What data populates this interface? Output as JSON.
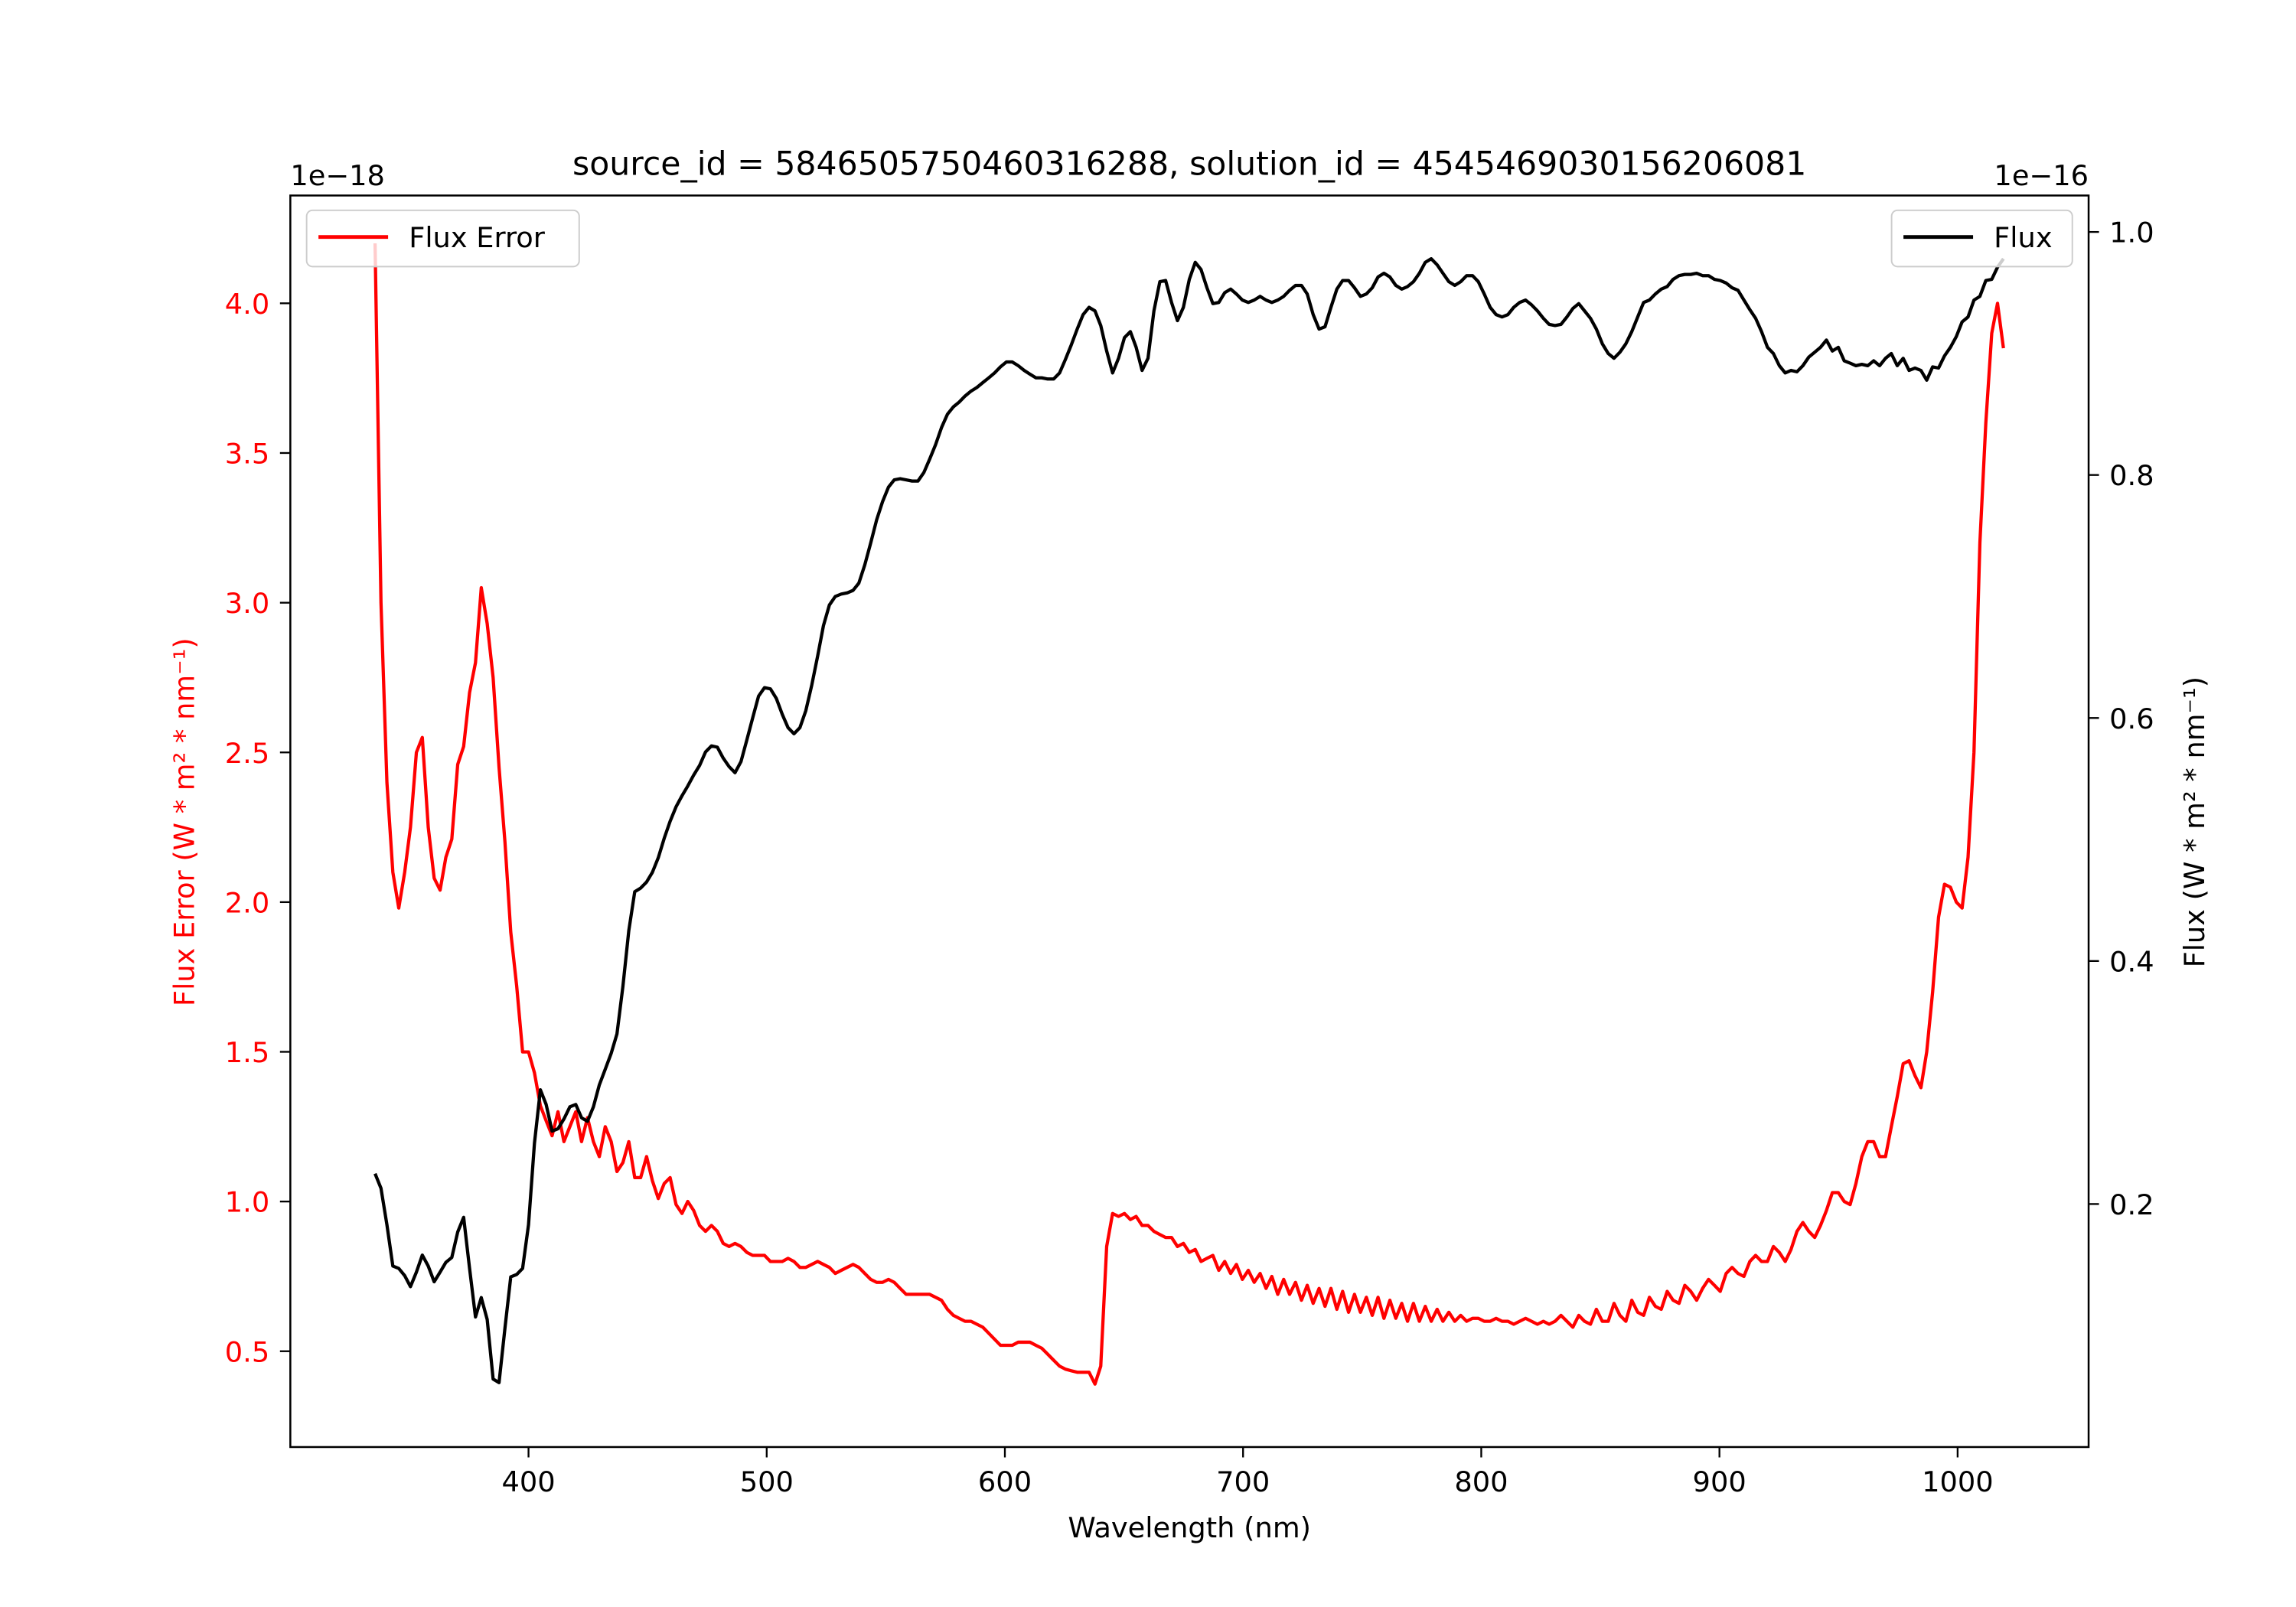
{
  "chart_data": {
    "type": "line",
    "title": "source_id = 5846505750460316288, solution_id = 4545469030156206081",
    "xlabel": "Wavelength (nm)",
    "ylabel_left": "Flux Error (W * m² * nm⁻¹)",
    "ylabel_right": "Flux (W * m² * nm⁻¹)",
    "offset_left": "1e−18",
    "offset_right": "1e−16",
    "xlim": [
      300,
      1055
    ],
    "ylim_left": [
      0.18,
      4.36
    ],
    "ylim_right": [
      0.0,
      1.03
    ],
    "x_ticks": [
      "400",
      "500",
      "600",
      "700",
      "800",
      "900",
      "1000"
    ],
    "y_ticks_left": [
      "0.5",
      "1.0",
      "1.5",
      "2.0",
      "2.5",
      "3.0",
      "3.5",
      "4.0"
    ],
    "y_ticks_right": [
      "0.2",
      "0.4",
      "0.6",
      "0.8",
      "1.0"
    ],
    "grid": false,
    "colors": {
      "flux_error": "#ff0000",
      "flux": "#000000",
      "left_axis_text": "#ff0000"
    },
    "legends": [
      {
        "label": "Flux Error",
        "placement": "upper-left",
        "color": "#ff0000"
      },
      {
        "label": "Flux",
        "placement": "upper-right",
        "color": "#000000"
      }
    ],
    "series": [
      {
        "name": "Flux Error",
        "axis": "left",
        "color": "#ff0000",
        "x_start": 335.6,
        "x_step": 2.477,
        "values": [
          4.2,
          3.0,
          2.4,
          2.1,
          1.98,
          2.1,
          2.25,
          2.5,
          2.55,
          2.25,
          2.08,
          2.04,
          2.15,
          2.21,
          2.46,
          2.52,
          2.7,
          2.8,
          3.05,
          2.93,
          2.75,
          2.45,
          2.2,
          1.9,
          1.72,
          1.5,
          1.5,
          1.43,
          1.32,
          1.27,
          1.22,
          1.3,
          1.2,
          1.25,
          1.3,
          1.2,
          1.28,
          1.2,
          1.15,
          1.25,
          1.2,
          1.1,
          1.13,
          1.2,
          1.08,
          1.08,
          1.15,
          1.07,
          1.01,
          1.06,
          1.08,
          0.99,
          0.96,
          1.0,
          0.97,
          0.92,
          0.9,
          0.92,
          0.9,
          0.86,
          0.85,
          0.86,
          0.85,
          0.83,
          0.82,
          0.82,
          0.82,
          0.8,
          0.8,
          0.8,
          0.81,
          0.8,
          0.78,
          0.78,
          0.79,
          0.8,
          0.79,
          0.78,
          0.76,
          0.77,
          0.78,
          0.79,
          0.78,
          0.76,
          0.74,
          0.73,
          0.73,
          0.74,
          0.73,
          0.71,
          0.69,
          0.69,
          0.69,
          0.69,
          0.69,
          0.68,
          0.67,
          0.64,
          0.62,
          0.61,
          0.6,
          0.6,
          0.59,
          0.58,
          0.56,
          0.54,
          0.52,
          0.52,
          0.52,
          0.53,
          0.53,
          0.53,
          0.52,
          0.51,
          0.49,
          0.47,
          0.45,
          0.44,
          0.435,
          0.43,
          0.43,
          0.43,
          0.39,
          0.45,
          0.85,
          0.96,
          0.95,
          0.96,
          0.94,
          0.95,
          0.92,
          0.92,
          0.9,
          0.89,
          0.88,
          0.88,
          0.85,
          0.86,
          0.83,
          0.84,
          0.8,
          0.81,
          0.82,
          0.77,
          0.8,
          0.76,
          0.79,
          0.74,
          0.77,
          0.73,
          0.76,
          0.71,
          0.75,
          0.69,
          0.74,
          0.69,
          0.73,
          0.67,
          0.72,
          0.66,
          0.71,
          0.65,
          0.71,
          0.64,
          0.7,
          0.63,
          0.69,
          0.63,
          0.68,
          0.62,
          0.68,
          0.61,
          0.67,
          0.61,
          0.66,
          0.6,
          0.66,
          0.6,
          0.65,
          0.6,
          0.64,
          0.6,
          0.63,
          0.6,
          0.62,
          0.6,
          0.61,
          0.61,
          0.6,
          0.6,
          0.61,
          0.6,
          0.6,
          0.59,
          0.6,
          0.61,
          0.6,
          0.59,
          0.6,
          0.59,
          0.6,
          0.62,
          0.6,
          0.58,
          0.62,
          0.6,
          0.59,
          0.64,
          0.6,
          0.6,
          0.66,
          0.62,
          0.6,
          0.67,
          0.63,
          0.62,
          0.68,
          0.65,
          0.64,
          0.7,
          0.67,
          0.66,
          0.72,
          0.7,
          0.67,
          0.71,
          0.74,
          0.72,
          0.7,
          0.76,
          0.78,
          0.76,
          0.75,
          0.8,
          0.82,
          0.8,
          0.8,
          0.85,
          0.83,
          0.8,
          0.84,
          0.9,
          0.93,
          0.9,
          0.88,
          0.92,
          0.97,
          1.03,
          1.03,
          1.0,
          0.99,
          1.06,
          1.15,
          1.2,
          1.2,
          1.15,
          1.15,
          1.25,
          1.35,
          1.46,
          1.47,
          1.42,
          1.38,
          1.5,
          1.7,
          1.95,
          2.06,
          2.05,
          2.0,
          1.98,
          2.15,
          2.5,
          3.2,
          3.6,
          3.9,
          4.0,
          3.85
        ]
      },
      {
        "name": "Flux",
        "axis": "right",
        "color": "#000000",
        "x_start": 335.6,
        "x_step": 2.477,
        "values": [
          0.225,
          0.213,
          0.183,
          0.149,
          0.147,
          0.141,
          0.132,
          0.144,
          0.158,
          0.149,
          0.136,
          0.144,
          0.152,
          0.156,
          0.177,
          0.189,
          0.147,
          0.107,
          0.123,
          0.105,
          0.056,
          0.053,
          0.098,
          0.14,
          0.142,
          0.147,
          0.183,
          0.25,
          0.294,
          0.282,
          0.26,
          0.262,
          0.27,
          0.28,
          0.282,
          0.271,
          0.268,
          0.28,
          0.298,
          0.311,
          0.324,
          0.34,
          0.379,
          0.425,
          0.457,
          0.46,
          0.465,
          0.473,
          0.485,
          0.501,
          0.515,
          0.527,
          0.536,
          0.544,
          0.553,
          0.561,
          0.572,
          0.577,
          0.576,
          0.567,
          0.56,
          0.555,
          0.564,
          0.582,
          0.6,
          0.618,
          0.625,
          0.624,
          0.616,
          0.603,
          0.592,
          0.587,
          0.592,
          0.606,
          0.627,
          0.651,
          0.676,
          0.693,
          0.7,
          0.702,
          0.703,
          0.705,
          0.711,
          0.726,
          0.744,
          0.763,
          0.778,
          0.79,
          0.796,
          0.797,
          0.796,
          0.795,
          0.795,
          0.802,
          0.813,
          0.825,
          0.839,
          0.85,
          0.856,
          0.86,
          0.865,
          0.869,
          0.872,
          0.876,
          0.88,
          0.884,
          0.889,
          0.893,
          0.893,
          0.89,
          0.886,
          0.883,
          0.88,
          0.88,
          0.879,
          0.879,
          0.884,
          0.895,
          0.907,
          0.92,
          0.932,
          0.938,
          0.935,
          0.923,
          0.902,
          0.884,
          0.896,
          0.913,
          0.918,
          0.905,
          0.886,
          0.896,
          0.935,
          0.959,
          0.96,
          0.942,
          0.927,
          0.938,
          0.961,
          0.975,
          0.969,
          0.954,
          0.941,
          0.942,
          0.95,
          0.953,
          0.949,
          0.944,
          0.942,
          0.944,
          0.947,
          0.944,
          0.942,
          0.944,
          0.947,
          0.952,
          0.956,
          0.956,
          0.949,
          0.932,
          0.92,
          0.922,
          0.938,
          0.953,
          0.96,
          0.96,
          0.954,
          0.947,
          0.949,
          0.954,
          0.963,
          0.966,
          0.963,
          0.956,
          0.953,
          0.955,
          0.959,
          0.966,
          0.975,
          0.978,
          0.973,
          0.966,
          0.959,
          0.956,
          0.959,
          0.964,
          0.964,
          0.959,
          0.949,
          0.938,
          0.932,
          0.93,
          0.932,
          0.938,
          0.942,
          0.944,
          0.94,
          0.935,
          0.929,
          0.924,
          0.923,
          0.924,
          0.93,
          0.937,
          0.941,
          0.935,
          0.929,
          0.92,
          0.908,
          0.9,
          0.896,
          0.901,
          0.908,
          0.918,
          0.93,
          0.942,
          0.944,
          0.949,
          0.953,
          0.955,
          0.961,
          0.964,
          0.965,
          0.965,
          0.966,
          0.964,
          0.964,
          0.961,
          0.96,
          0.958,
          0.954,
          0.952,
          0.944,
          0.936,
          0.929,
          0.918,
          0.905,
          0.9,
          0.89,
          0.884,
          0.886,
          0.885,
          0.89,
          0.897,
          0.901,
          0.905,
          0.911,
          0.902,
          0.905,
          0.894,
          0.892,
          0.89,
          0.891,
          0.89,
          0.894,
          0.89,
          0.896,
          0.9,
          0.89,
          0.896,
          0.886,
          0.888,
          0.886,
          0.878,
          0.889,
          0.888,
          0.898,
          0.905,
          0.914,
          0.926,
          0.93,
          0.944,
          0.947,
          0.96,
          0.961,
          0.971,
          0.978
        ]
      }
    ]
  }
}
